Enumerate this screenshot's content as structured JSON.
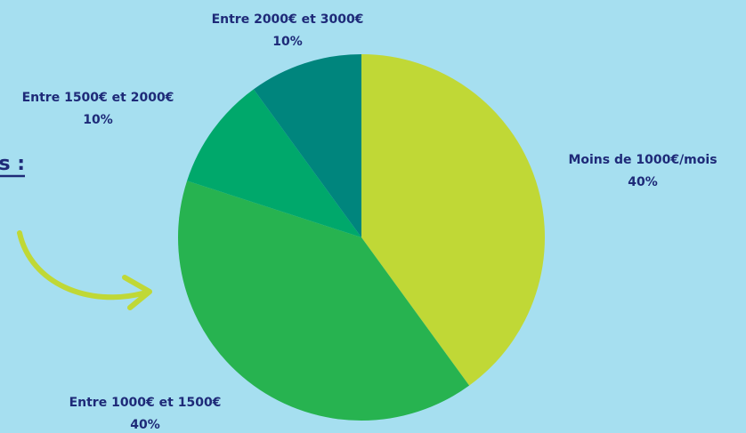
{
  "chart_data": {
    "type": "pie",
    "categories": [
      "Moins de 1000€/mois",
      "Entre 1000€ et 1500€",
      "Entre 1500€ et 2000€",
      "Entre 2000€ et 3000€"
    ],
    "values": [
      40,
      40,
      10,
      10
    ],
    "value_labels": [
      "40%",
      "40%",
      "10%",
      "10%"
    ],
    "colors": [
      "#c0d836",
      "#27b350",
      "#00a86b",
      "#00857d"
    ]
  },
  "side_text": "s :"
}
